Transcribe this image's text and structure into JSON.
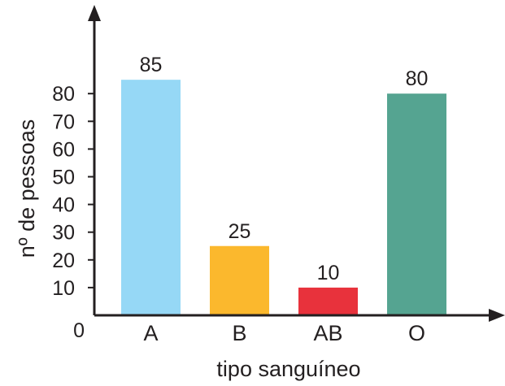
{
  "chart_data": {
    "type": "bar",
    "title": "",
    "xlabel": "tipo sanguíneo",
    "ylabel": "nº de pessoas",
    "categories": [
      "A",
      "B",
      "AB",
      "O"
    ],
    "values": [
      85,
      25,
      10,
      80
    ],
    "data_labels": [
      "85",
      "25",
      "10",
      "80"
    ],
    "colors": [
      "#96d8f6",
      "#fbb82d",
      "#e8323c",
      "#55a491"
    ],
    "axis_color": "#231f20",
    "ylim": [
      0,
      85
    ],
    "yticks": [
      0,
      10,
      20,
      30,
      40,
      50,
      60,
      70,
      80
    ],
    "ytick_labels": [
      "0",
      "10",
      "20",
      "30",
      "40",
      "50",
      "60",
      "70",
      "80"
    ],
    "grid": false,
    "legend": "none"
  }
}
